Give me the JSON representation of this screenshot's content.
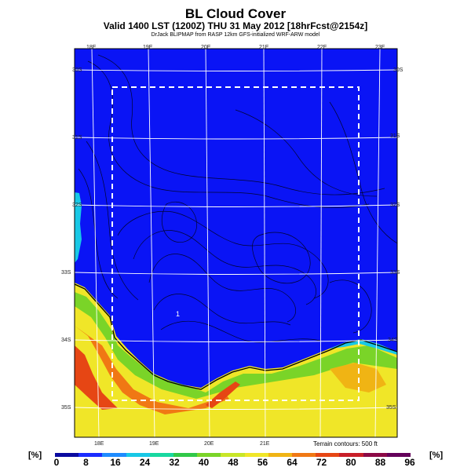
{
  "header": {
    "title": "BL Cloud Cover",
    "valid": "Valid 1400 LST (1200Z) THU 31 May 2012 [18hrFcst@2154z]",
    "credit": "DrJack BLIPMAP from RASP 12km GFS-initialized WRF-ARW model"
  },
  "map": {
    "lon_top": [
      "18E",
      "19E",
      "20E",
      "21E",
      "22E",
      "23E"
    ],
    "lon_bottom": [
      "18E",
      "19E",
      "20E",
      "21E"
    ],
    "lat_left": [
      "30S",
      "31S",
      "32S",
      "33S",
      "34S",
      "35S"
    ],
    "lat_right": [
      "30S",
      "31S",
      "32S",
      "33S",
      "34S",
      "35S"
    ],
    "terrain_note": "Terrain contours: 500 ft",
    "marker": "1"
  },
  "legend": {
    "unit_left": "[%]",
    "unit_right": "[%]",
    "labels": [
      "0",
      "8",
      "16",
      "24",
      "32",
      "40",
      "48",
      "56",
      "64",
      "72",
      "80",
      "88",
      "96"
    ],
    "colors": [
      "#0a0aa0",
      "#1a2cff",
      "#1e8cff",
      "#18c8e6",
      "#18d8a0",
      "#30c848",
      "#7ad428",
      "#c8e628",
      "#f0e628",
      "#f0b414",
      "#f07814",
      "#e64614",
      "#c81e28",
      "#8c0a46",
      "#64005a"
    ]
  }
}
